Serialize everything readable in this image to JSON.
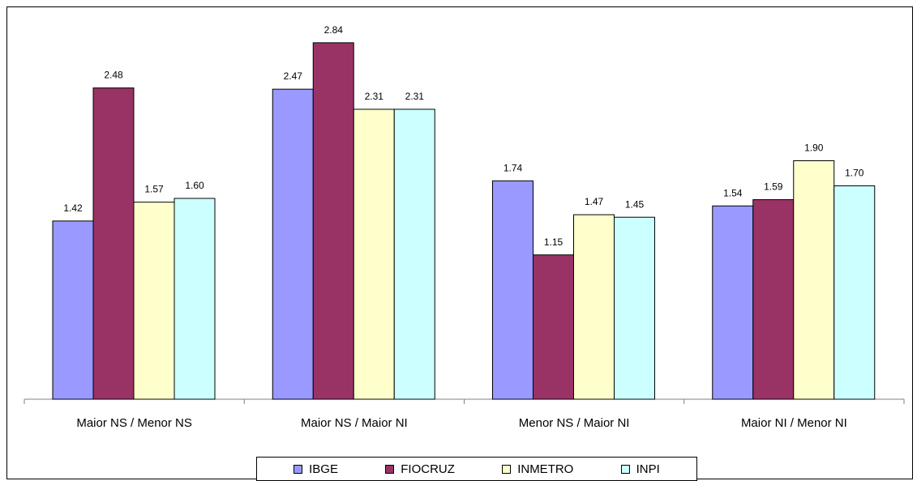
{
  "chart_data": {
    "type": "bar",
    "categories": [
      "Maior NS / Menor NS",
      "Maior NS / Maior NI",
      "Menor NS / Maior NI",
      "Maior NI / Menor NI"
    ],
    "series": [
      {
        "name": "IBGE",
        "color": "#9999ff",
        "values": [
          1.42,
          2.47,
          1.74,
          1.54
        ]
      },
      {
        "name": "FIOCRUZ",
        "color": "#993366",
        "values": [
          2.48,
          2.84,
          1.15,
          1.59
        ]
      },
      {
        "name": "INMETRO",
        "color": "#ffffcc",
        "values": [
          1.57,
          2.31,
          1.47,
          1.9
        ]
      },
      {
        "name": "INPI",
        "color": "#ccffff",
        "values": [
          1.6,
          2.31,
          1.45,
          1.7
        ]
      }
    ],
    "value_labels": [
      [
        "1.42",
        "2.47",
        "1.74",
        "1.54"
      ],
      [
        "2.48",
        "2.84",
        "1.15",
        "1.59"
      ],
      [
        "1.57",
        "2.31",
        "1.47",
        "1.90"
      ],
      [
        "1.60",
        "2.31",
        "1.45",
        "1.70"
      ]
    ],
    "ylim": [
      0,
      3.0
    ],
    "grid": false,
    "legend_position": "bottom"
  }
}
